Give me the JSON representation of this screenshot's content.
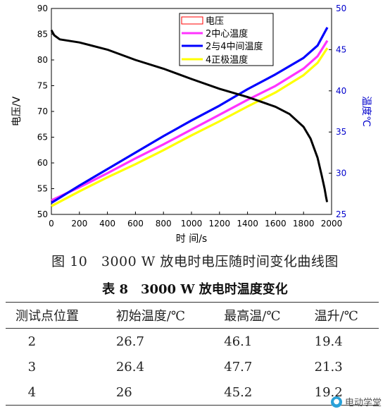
{
  "chart_data": {
    "type": "line",
    "xlabel": "时 间/s",
    "ylabel_left": "电压/V",
    "ylabel_right": "温度℃",
    "xlim": [
      0,
      2000
    ],
    "ylim_left": [
      50,
      90
    ],
    "ylim_right": [
      25,
      50
    ],
    "x_ticks": [
      "0",
      "200",
      "400",
      "600",
      "800",
      "1000",
      "1200",
      "1400",
      "1600",
      "1800",
      "2000"
    ],
    "y_ticks_left": [
      "50",
      "55",
      "60",
      "65",
      "70",
      "75",
      "80",
      "85",
      "90"
    ],
    "y_ticks_right": [
      "25",
      "30",
      "35",
      "40",
      "45",
      "50"
    ],
    "legend_position": "top-right",
    "series": [
      {
        "name": "电压",
        "axis": "left",
        "color": "#000000",
        "x": [
          0,
          20,
          60,
          200,
          400,
          600,
          800,
          1000,
          1200,
          1400,
          1600,
          1700,
          1800,
          1850,
          1900,
          1930,
          1950,
          1960,
          1968
        ],
        "y": [
          85.8,
          84.8,
          84.0,
          83.4,
          82.0,
          80.0,
          78.3,
          76.3,
          74.4,
          72.8,
          70.9,
          69.5,
          67.0,
          64.7,
          61.0,
          57.5,
          55.0,
          53.5,
          52.4
        ]
      },
      {
        "name": "2中心温度",
        "axis": "right",
        "color": "#ff33ff",
        "x": [
          0,
          200,
          400,
          600,
          800,
          1000,
          1200,
          1400,
          1600,
          1800,
          1900,
          1970
        ],
        "y": [
          26.7,
          28.3,
          30.0,
          31.8,
          33.5,
          35.3,
          37.1,
          38.9,
          40.6,
          42.7,
          44.2,
          46.1
        ]
      },
      {
        "name": "2与4中间温度",
        "axis": "right",
        "color": "#0000ff",
        "x": [
          0,
          200,
          400,
          600,
          800,
          1000,
          1200,
          1400,
          1600,
          1800,
          1900,
          1970
        ],
        "y": [
          26.4,
          28.5,
          30.5,
          32.5,
          34.5,
          36.4,
          38.2,
          40.2,
          42.0,
          44.0,
          45.5,
          47.7
        ]
      },
      {
        "name": "4正极温度",
        "axis": "right",
        "color": "#ffff00",
        "x": [
          0,
          200,
          400,
          600,
          800,
          1000,
          1200,
          1400,
          1600,
          1800,
          1900,
          1970
        ],
        "y": [
          26.0,
          27.8,
          29.5,
          31.1,
          32.8,
          34.6,
          36.3,
          38.1,
          39.8,
          41.9,
          43.4,
          45.2
        ]
      }
    ]
  },
  "figure_caption": "图 10　3000 W 放电时电压随时间变化曲线图",
  "table_title": "表 8　3000 W 放电时温度变化",
  "table": {
    "headers": [
      "测试点位置",
      "初始温度/℃",
      "最高温/℃",
      "温升/℃"
    ],
    "rows": [
      [
        "2",
        "26.7",
        "46.1",
        "19.4"
      ],
      [
        "3",
        "26.4",
        "47.7",
        "21.3"
      ],
      [
        "4",
        "26",
        "45.2",
        "19.2"
      ]
    ]
  },
  "watermark": "电动学堂"
}
